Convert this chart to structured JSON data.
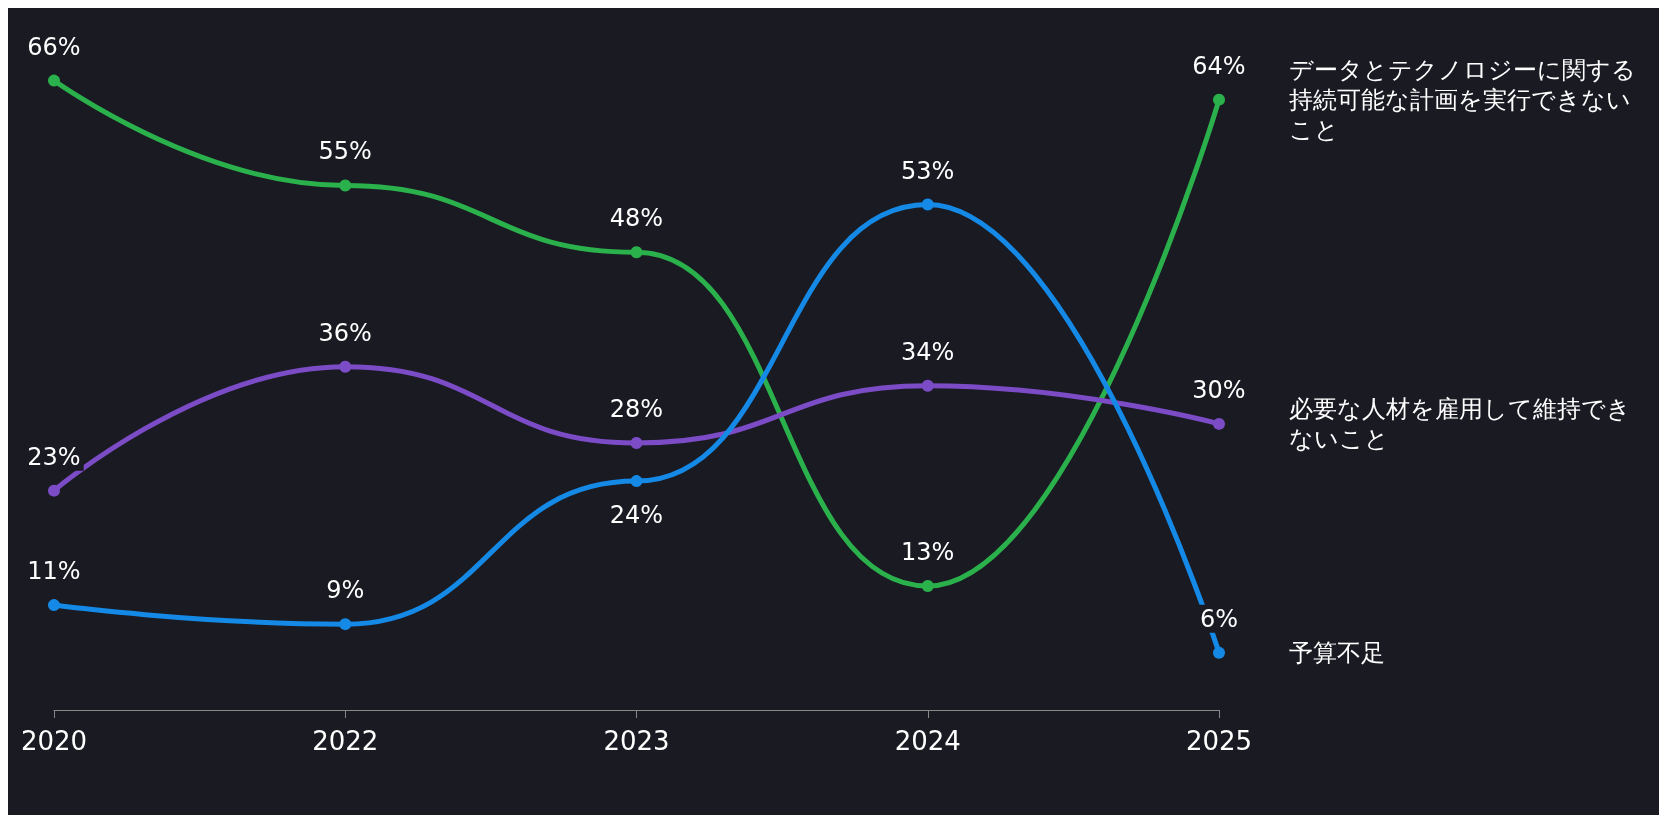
{
  "chart_data": {
    "type": "line",
    "categories": [
      "2020",
      "2022",
      "2023",
      "2024",
      "2025"
    ],
    "series": [
      {
        "name": "データとテクノロジーに関する持続可能な計画を実行できないこと",
        "color": "#2bb14c",
        "values": [
          66,
          55,
          48,
          13,
          64
        ],
        "value_labels": [
          "66%",
          "55%",
          "48%",
          "13%",
          "64%"
        ]
      },
      {
        "name": "必要な人材を雇用して維持できないこと",
        "color": "#7b4cc6",
        "values": [
          23,
          36,
          28,
          34,
          30
        ],
        "value_labels": [
          "23%",
          "36%",
          "28%",
          "34%",
          "30%"
        ]
      },
      {
        "name": "予算不足",
        "color": "#1589e6",
        "values": [
          11,
          9,
          24,
          53,
          6
        ],
        "value_labels": [
          "11%",
          "9%",
          "24%",
          "53%",
          "6%"
        ]
      }
    ],
    "grid": false,
    "legend": false,
    "marker": "circle",
    "line_style": "solid"
  }
}
